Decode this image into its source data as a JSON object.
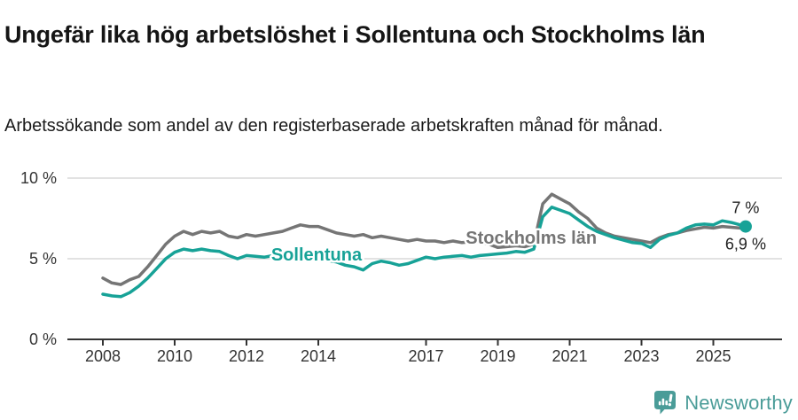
{
  "header": {
    "title": "Ungefär lika hög arbetslöshet i Sollentuna och Stockholms län",
    "subtitle": "Arbetssökande som andel av den registerbaserade arbetskraften månad för månad."
  },
  "chart_data": {
    "type": "line",
    "title": "Ungefär lika hög arbetslöshet i Sollentuna och Stockholms län",
    "xlabel": "",
    "ylabel": "",
    "unit": "%",
    "grid": "horizontal",
    "legend_position": "inline-labels",
    "y_axis": {
      "min": 0,
      "max": 10,
      "ticks": [
        {
          "value": 0,
          "label": "0 %"
        },
        {
          "value": 5,
          "label": "5 %"
        },
        {
          "value": 10,
          "label": "10 %"
        }
      ]
    },
    "x_axis": {
      "min": 2007.7,
      "max": 2026.3,
      "ticks": [
        {
          "value": 2008,
          "label": "2008"
        },
        {
          "value": 2010,
          "label": "2010"
        },
        {
          "value": 2012,
          "label": "2012"
        },
        {
          "value": 2014,
          "label": "2014"
        },
        {
          "value": 2017,
          "label": "2017"
        },
        {
          "value": 2019,
          "label": "2019"
        },
        {
          "value": 2021,
          "label": "2021"
        },
        {
          "value": 2023,
          "label": "2023"
        },
        {
          "value": 2025,
          "label": "2025"
        }
      ]
    },
    "x": [
      2008.0,
      2008.25,
      2008.5,
      2008.75,
      2009.0,
      2009.25,
      2009.5,
      2009.75,
      2010.0,
      2010.25,
      2010.5,
      2010.75,
      2011.0,
      2011.25,
      2011.5,
      2011.75,
      2012.0,
      2012.25,
      2012.5,
      2012.75,
      2013.0,
      2013.25,
      2013.5,
      2013.75,
      2014.0,
      2014.25,
      2014.5,
      2014.75,
      2015.0,
      2015.25,
      2015.5,
      2015.75,
      2016.0,
      2016.25,
      2016.5,
      2016.75,
      2017.0,
      2017.25,
      2017.5,
      2017.75,
      2018.0,
      2018.25,
      2018.5,
      2018.75,
      2019.0,
      2019.25,
      2019.5,
      2019.75,
      2020.0,
      2020.25,
      2020.5,
      2020.75,
      2021.0,
      2021.25,
      2021.5,
      2021.75,
      2022.0,
      2022.25,
      2022.5,
      2022.75,
      2023.0,
      2023.25,
      2023.5,
      2023.75,
      2024.0,
      2024.25,
      2024.5,
      2024.75,
      2025.0,
      2025.25,
      2025.5,
      2025.75,
      2025.9
    ],
    "series": [
      {
        "name": "Sollentuna",
        "color": "#17a297",
        "end_label": "7 %",
        "end_value": 7.0,
        "end_marker": true,
        "end_label_position": "above",
        "label_at": {
          "x": 2013.95,
          "y": 5.27
        },
        "values": [
          2.8,
          2.7,
          2.65,
          2.9,
          3.3,
          3.8,
          4.4,
          5.0,
          5.4,
          5.6,
          5.5,
          5.6,
          5.5,
          5.45,
          5.2,
          5.0,
          5.2,
          5.15,
          5.1,
          5.2,
          5.3,
          5.2,
          5.3,
          5.1,
          5.0,
          4.9,
          4.8,
          4.6,
          4.5,
          4.3,
          4.7,
          4.85,
          4.75,
          4.6,
          4.7,
          4.9,
          5.1,
          5.0,
          5.1,
          5.15,
          5.2,
          5.1,
          5.2,
          5.25,
          5.3,
          5.35,
          5.45,
          5.4,
          5.6,
          7.6,
          8.2,
          8.0,
          7.8,
          7.4,
          7.0,
          6.7,
          6.5,
          6.3,
          6.15,
          6.0,
          5.95,
          5.7,
          6.2,
          6.45,
          6.6,
          6.9,
          7.1,
          7.15,
          7.1,
          7.35,
          7.25,
          7.1,
          7.0
        ]
      },
      {
        "name": "Stockholms län",
        "color": "#757575",
        "end_label": "6,9 %",
        "end_value": 6.9,
        "end_marker": false,
        "end_label_position": "below",
        "label_at": {
          "x": 2019.93,
          "y": 6.32
        },
        "values": [
          3.8,
          3.5,
          3.4,
          3.7,
          3.9,
          4.5,
          5.2,
          5.9,
          6.4,
          6.7,
          6.5,
          6.7,
          6.6,
          6.7,
          6.4,
          6.3,
          6.5,
          6.4,
          6.5,
          6.6,
          6.7,
          6.9,
          7.1,
          7.0,
          7.0,
          6.8,
          6.6,
          6.5,
          6.4,
          6.5,
          6.3,
          6.4,
          6.3,
          6.2,
          6.1,
          6.2,
          6.1,
          6.1,
          6.0,
          6.1,
          6.0,
          6.05,
          6.0,
          5.9,
          5.7,
          5.75,
          5.8,
          5.75,
          5.9,
          8.4,
          9.0,
          8.7,
          8.4,
          7.9,
          7.5,
          6.9,
          6.6,
          6.4,
          6.3,
          6.2,
          6.1,
          6.0,
          6.3,
          6.5,
          6.6,
          6.75,
          6.85,
          6.95,
          6.9,
          7.0,
          6.95,
          6.9,
          6.9
        ]
      }
    ],
    "style": {
      "grid_color": "#d9d9d9",
      "axis_color": "#333333",
      "text_color": "#333333"
    }
  },
  "footer": {
    "brand": "Newsworthy",
    "brand_color": "#4a9c98",
    "logo_icon": "newsworthy-speech-bubble-chart-icon"
  }
}
